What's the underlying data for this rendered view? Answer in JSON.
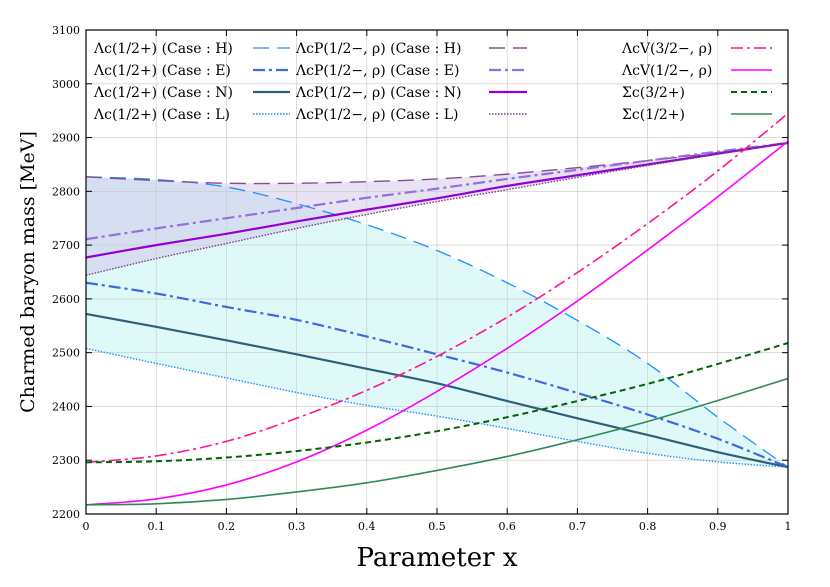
{
  "chart_data": {
    "type": "line",
    "xlabel": "Parameter x",
    "ylabel": "Charmed baryon mass [MeV]",
    "xlim": [
      0,
      1
    ],
    "ylim": [
      2200,
      3100
    ],
    "xticks": [
      "0",
      "0.1",
      "0.2",
      "0.3",
      "0.4",
      "0.5",
      "0.6",
      "0.7",
      "0.8",
      "0.9",
      "1"
    ],
    "yticks": [
      "2200",
      "2300",
      "2400",
      "2500",
      "2600",
      "2700",
      "2800",
      "2900",
      "3000",
      "3100"
    ],
    "grid": true,
    "series": [
      {
        "name": "Λc(1/2+) (Case : H)",
        "color": "#1e90ff",
        "dash": "long",
        "width": 1.3,
        "points": [
          [
            0,
            2827
          ],
          [
            0.1,
            2822
          ],
          [
            0.2,
            2808
          ],
          [
            0.3,
            2777
          ],
          [
            0.4,
            2738
          ],
          [
            0.5,
            2690
          ],
          [
            0.6,
            2630
          ],
          [
            0.7,
            2560
          ],
          [
            0.8,
            2480
          ],
          [
            0.9,
            2380
          ],
          [
            1,
            2287
          ]
        ]
      },
      {
        "name": "Λc(1/2+) (Case : E)",
        "color": "#4169e1",
        "dash": "dashdot",
        "width": 2.2,
        "points": [
          [
            0,
            2630
          ],
          [
            0.1,
            2610
          ],
          [
            0.2,
            2585
          ],
          [
            0.3,
            2561
          ],
          [
            0.4,
            2530
          ],
          [
            0.5,
            2497
          ],
          [
            0.6,
            2463
          ],
          [
            0.7,
            2425
          ],
          [
            0.8,
            2385
          ],
          [
            0.9,
            2340
          ],
          [
            1,
            2287
          ]
        ]
      },
      {
        "name": "Λc(1/2+) (Case : N)",
        "color": "#2f5f7a",
        "dash": "solid",
        "width": 2.2,
        "points": [
          [
            0,
            2572
          ],
          [
            0.1,
            2548
          ],
          [
            0.2,
            2523
          ],
          [
            0.3,
            2497
          ],
          [
            0.4,
            2470
          ],
          [
            0.5,
            2443
          ],
          [
            0.6,
            2410
          ],
          [
            0.7,
            2378
          ],
          [
            0.8,
            2347
          ],
          [
            0.9,
            2315
          ],
          [
            1,
            2287
          ]
        ]
      },
      {
        "name": "Λc(1/2+) (Case : L)",
        "color": "#1e90ff",
        "dash": "dotted",
        "width": 1.4,
        "points": [
          [
            0,
            2508
          ],
          [
            0.1,
            2480
          ],
          [
            0.2,
            2453
          ],
          [
            0.3,
            2426
          ],
          [
            0.4,
            2402
          ],
          [
            0.5,
            2382
          ],
          [
            0.6,
            2359
          ],
          [
            0.7,
            2335
          ],
          [
            0.8,
            2313
          ],
          [
            0.9,
            2297
          ],
          [
            1,
            2287
          ]
        ]
      },
      {
        "name": "ΛcP(1/2−, ρ) (Case : H)",
        "color": "#8b4c8b",
        "dash": "long",
        "width": 1.4,
        "points": [
          [
            0,
            2827
          ],
          [
            0.1,
            2820
          ],
          [
            0.2,
            2815
          ],
          [
            0.3,
            2815
          ],
          [
            0.4,
            2818
          ],
          [
            0.5,
            2823
          ],
          [
            0.6,
            2832
          ],
          [
            0.7,
            2844
          ],
          [
            0.8,
            2857
          ],
          [
            0.9,
            2872
          ],
          [
            1,
            2890
          ]
        ]
      },
      {
        "name": "ΛcP(1/2−, ρ) (Case : E)",
        "color": "#9370db",
        "dash": "dashdot",
        "width": 2.2,
        "points": [
          [
            0,
            2711
          ],
          [
            0.1,
            2731
          ],
          [
            0.2,
            2750
          ],
          [
            0.3,
            2769
          ],
          [
            0.4,
            2788
          ],
          [
            0.5,
            2805
          ],
          [
            0.6,
            2823
          ],
          [
            0.7,
            2840
          ],
          [
            0.8,
            2857
          ],
          [
            0.9,
            2874
          ],
          [
            1,
            2890
          ]
        ]
      },
      {
        "name": "ΛcP(1/2−, ρ) (Case : N)",
        "color": "#9400d3",
        "dash": "solid",
        "width": 2.2,
        "points": [
          [
            0,
            2677
          ],
          [
            0.1,
            2700
          ],
          [
            0.2,
            2721
          ],
          [
            0.3,
            2744
          ],
          [
            0.4,
            2766
          ],
          [
            0.5,
            2787
          ],
          [
            0.6,
            2810
          ],
          [
            0.7,
            2830
          ],
          [
            0.8,
            2850
          ],
          [
            0.9,
            2870
          ],
          [
            1,
            2890
          ]
        ]
      },
      {
        "name": "ΛcP(1/2−, ρ) (Case : L)",
        "color": "#7b3f7b",
        "dash": "dotted",
        "width": 1.4,
        "points": [
          [
            0,
            2644
          ],
          [
            0.1,
            2675
          ],
          [
            0.2,
            2703
          ],
          [
            0.3,
            2731
          ],
          [
            0.4,
            2757
          ],
          [
            0.5,
            2781
          ],
          [
            0.6,
            2803
          ],
          [
            0.7,
            2826
          ],
          [
            0.8,
            2848
          ],
          [
            0.9,
            2869
          ],
          [
            1,
            2890
          ]
        ]
      },
      {
        "name": "ΛcV(3/2−, ρ)",
        "color": "#ff1493",
        "dash": "dashdot",
        "width": 1.6,
        "points": [
          [
            0,
            2296
          ],
          [
            0.1,
            2308
          ],
          [
            0.2,
            2335
          ],
          [
            0.3,
            2378
          ],
          [
            0.4,
            2430
          ],
          [
            0.5,
            2493
          ],
          [
            0.6,
            2566
          ],
          [
            0.7,
            2649
          ],
          [
            0.8,
            2740
          ],
          [
            0.9,
            2838
          ],
          [
            1,
            2945
          ]
        ]
      },
      {
        "name": "ΛcV(1/2−, ρ)",
        "color": "#ff00ff",
        "dash": "solid",
        "width": 1.6,
        "points": [
          [
            0,
            2217
          ],
          [
            0.1,
            2228
          ],
          [
            0.2,
            2254
          ],
          [
            0.3,
            2297
          ],
          [
            0.4,
            2356
          ],
          [
            0.5,
            2428
          ],
          [
            0.6,
            2508
          ],
          [
            0.7,
            2596
          ],
          [
            0.8,
            2691
          ],
          [
            0.9,
            2790
          ],
          [
            1,
            2893
          ]
        ]
      },
      {
        "name": "Σc(3/2+)",
        "color": "#006400",
        "dash": "dashed",
        "width": 2.0,
        "points": [
          [
            0,
            2296
          ],
          [
            0.1,
            2298
          ],
          [
            0.2,
            2305
          ],
          [
            0.3,
            2317
          ],
          [
            0.4,
            2333
          ],
          [
            0.5,
            2354
          ],
          [
            0.6,
            2380
          ],
          [
            0.7,
            2410
          ],
          [
            0.8,
            2442
          ],
          [
            0.9,
            2479
          ],
          [
            1,
            2518
          ]
        ]
      },
      {
        "name": "Σc(1/2+)",
        "color": "#2e8b57",
        "dash": "solid",
        "width": 1.6,
        "points": [
          [
            0,
            2217
          ],
          [
            0.1,
            2219
          ],
          [
            0.2,
            2227
          ],
          [
            0.3,
            2241
          ],
          [
            0.4,
            2258
          ],
          [
            0.5,
            2281
          ],
          [
            0.6,
            2307
          ],
          [
            0.7,
            2338
          ],
          [
            0.8,
            2372
          ],
          [
            0.9,
            2411
          ],
          [
            1,
            2452
          ]
        ]
      }
    ],
    "bands": [
      {
        "name": "Λc(1/2+) band",
        "upper": "Λc(1/2+) (Case : H)",
        "lower": "Λc(1/2+) (Case : L)",
        "color": "#b9f0f0"
      },
      {
        "name": "ΛcP(1/2−, ρ) band",
        "upper": "ΛcP(1/2−, ρ) (Case : H)",
        "lower": "ΛcP(1/2−, ρ) (Case : L)",
        "color": "#cdbfe8"
      }
    ],
    "legend": {
      "placement": "top",
      "columns": [
        [
          "Λc(1/2+) (Case : H)",
          "Λc(1/2+) (Case : E)",
          "Λc(1/2+) (Case : N)",
          "Λc(1/2+) (Case : L)"
        ],
        [
          "ΛcP(1/2−, ρ) (Case : H)",
          "ΛcP(1/2−, ρ) (Case : E)",
          "ΛcP(1/2−, ρ) (Case : N)",
          "ΛcP(1/2−, ρ) (Case : L)"
        ],
        [
          "ΛcV(3/2−, ρ)",
          "ΛcV(1/2−, ρ)",
          "Σc(3/2+)",
          "Σc(1/2+)"
        ]
      ]
    }
  }
}
